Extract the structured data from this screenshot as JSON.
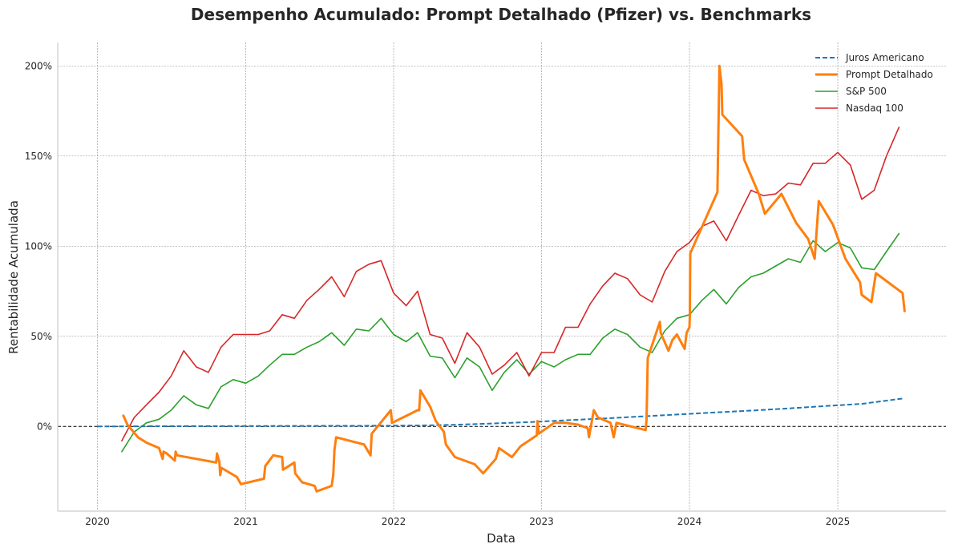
{
  "chart_data": {
    "type": "line",
    "title": "Desempenho Acumulado: Prompt Detalhado (Pfizer) vs. Benchmarks",
    "xlabel": "Data",
    "ylabel": "Rentabilidade Acumulada",
    "x_ticks": [
      "2020",
      "2021",
      "2022",
      "2023",
      "2024",
      "2025"
    ],
    "y_ticks": [
      "0%",
      "50%",
      "100%",
      "150%",
      "200%"
    ],
    "xlim": [
      "2019-09-25",
      "2025-09-25"
    ],
    "ylim": [
      -47,
      213
    ],
    "grid": true,
    "legend_position": "top-right",
    "reference_line": 0,
    "series": [
      {
        "name": "Juros Americano",
        "color": "#1f77b4",
        "style": "dashed",
        "points": [
          [
            "2020-01-01",
            0
          ],
          [
            "2020-06-01",
            0.1
          ],
          [
            "2020-12-01",
            0.2
          ],
          [
            "2021-06-01",
            0.3
          ],
          [
            "2021-12-01",
            0.4
          ],
          [
            "2022-03-01",
            0.5
          ],
          [
            "2022-06-01",
            0.9
          ],
          [
            "2022-09-01",
            1.6
          ],
          [
            "2022-12-01",
            2.4
          ],
          [
            "2023-03-01",
            3.4
          ],
          [
            "2023-06-01",
            4.4
          ],
          [
            "2023-09-01",
            5.5
          ],
          [
            "2023-12-01",
            6.6
          ],
          [
            "2024-03-01",
            7.7
          ],
          [
            "2024-06-01",
            8.8
          ],
          [
            "2024-09-01",
            10
          ],
          [
            "2024-12-01",
            11.3
          ],
          [
            "2025-03-01",
            12.5
          ],
          [
            "2025-06-15",
            15.6
          ]
        ]
      },
      {
        "name": "Prompt Detalhado",
        "color": "#ff7f0e",
        "style": "solid",
        "points": [
          [
            "2020-03-05",
            6
          ],
          [
            "2020-03-15",
            1
          ],
          [
            "2020-04-10",
            -6
          ],
          [
            "2020-05-01",
            -9
          ],
          [
            "2020-06-01",
            -12
          ],
          [
            "2020-06-10",
            -18
          ],
          [
            "2020-06-12",
            -14
          ],
          [
            "2020-06-20",
            -15
          ],
          [
            "2020-07-10",
            -19
          ],
          [
            "2020-07-12",
            -14
          ],
          [
            "2020-07-15",
            -16
          ],
          [
            "2020-10-20",
            -20
          ],
          [
            "2020-10-22",
            -15
          ],
          [
            "2020-10-28",
            -20
          ],
          [
            "2020-10-30",
            -27
          ],
          [
            "2020-11-02",
            -23
          ],
          [
            "2020-12-10",
            -28
          ],
          [
            "2020-12-20",
            -32
          ],
          [
            "2021-02-15",
            -29
          ],
          [
            "2021-02-18",
            -22
          ],
          [
            "2021-03-10",
            -16
          ],
          [
            "2021-04-01",
            -17
          ],
          [
            "2021-04-03",
            -24
          ],
          [
            "2021-05-01",
            -20
          ],
          [
            "2021-05-03",
            -26
          ],
          [
            "2021-05-20",
            -31
          ],
          [
            "2021-06-20",
            -33
          ],
          [
            "2021-06-25",
            -36
          ],
          [
            "2021-08-01",
            -33
          ],
          [
            "2021-08-05",
            -27
          ],
          [
            "2021-08-08",
            -13
          ],
          [
            "2021-08-12",
            -6
          ],
          [
            "2021-10-20",
            -10
          ],
          [
            "2021-11-05",
            -16
          ],
          [
            "2021-11-08",
            -4
          ],
          [
            "2021-12-25",
            9
          ],
          [
            "2021-12-28",
            2
          ],
          [
            "2022-03-01",
            9
          ],
          [
            "2022-03-05",
            9
          ],
          [
            "2022-03-08",
            20
          ],
          [
            "2022-04-01",
            11
          ],
          [
            "2022-04-15",
            3
          ],
          [
            "2022-05-05",
            -3
          ],
          [
            "2022-05-10",
            -10
          ],
          [
            "2022-06-01",
            -17
          ],
          [
            "2022-07-20",
            -21
          ],
          [
            "2022-08-10",
            -26
          ],
          [
            "2022-09-10",
            -18
          ],
          [
            "2022-09-18",
            -12
          ],
          [
            "2022-10-20",
            -17
          ],
          [
            "2022-11-10",
            -11
          ],
          [
            "2022-12-20",
            -5
          ],
          [
            "2022-12-22",
            3
          ],
          [
            "2022-12-25",
            -4
          ],
          [
            "2023-02-01",
            2
          ],
          [
            "2023-03-01",
            2
          ],
          [
            "2023-04-01",
            1
          ],
          [
            "2023-04-25",
            -1
          ],
          [
            "2023-04-28",
            -6
          ],
          [
            "2023-05-10",
            9
          ],
          [
            "2023-05-20",
            5
          ],
          [
            "2023-06-20",
            2
          ],
          [
            "2023-06-28",
            -6
          ],
          [
            "2023-07-05",
            2
          ],
          [
            "2023-08-10",
            0
          ],
          [
            "2023-09-15",
            -2
          ],
          [
            "2023-09-17",
            4
          ],
          [
            "2023-09-20",
            38
          ],
          [
            "2023-10-20",
            58
          ],
          [
            "2023-10-22",
            52
          ],
          [
            "2023-11-10",
            42
          ],
          [
            "2023-11-20",
            48
          ],
          [
            "2023-12-01",
            51
          ],
          [
            "2023-12-20",
            43
          ],
          [
            "2023-12-25",
            52
          ],
          [
            "2024-01-01",
            55
          ],
          [
            "2024-01-02",
            62
          ],
          [
            "2024-01-03",
            96
          ],
          [
            "2024-03-10",
            130
          ],
          [
            "2024-03-15",
            200
          ],
          [
            "2024-03-20",
            190
          ],
          [
            "2024-03-22",
            173
          ],
          [
            "2024-05-10",
            161
          ],
          [
            "2024-05-15",
            148
          ],
          [
            "2024-06-20",
            129
          ],
          [
            "2024-07-05",
            118
          ],
          [
            "2024-08-15",
            129
          ],
          [
            "2024-09-20",
            113
          ],
          [
            "2024-10-20",
            104
          ],
          [
            "2024-11-05",
            93
          ],
          [
            "2024-11-15",
            125
          ],
          [
            "2024-12-20",
            112
          ],
          [
            "2025-01-20",
            93
          ],
          [
            "2025-02-25",
            80
          ],
          [
            "2025-03-01",
            73
          ],
          [
            "2025-03-25",
            69
          ],
          [
            "2025-04-05",
            85
          ],
          [
            "2025-06-10",
            74
          ],
          [
            "2025-06-15",
            64
          ]
        ]
      },
      {
        "name": "S&P 500",
        "color": "#2ca02c",
        "style": "solid",
        "points": [
          [
            "2020-03-01",
            -14
          ],
          [
            "2020-04-01",
            -3
          ],
          [
            "2020-05-01",
            2
          ],
          [
            "2020-06-01",
            4
          ],
          [
            "2020-07-01",
            9
          ],
          [
            "2020-08-01",
            17
          ],
          [
            "2020-09-01",
            12
          ],
          [
            "2020-10-01",
            10
          ],
          [
            "2020-11-01",
            22
          ],
          [
            "2020-12-01",
            26
          ],
          [
            "2021-01-01",
            24
          ],
          [
            "2021-02-01",
            28
          ],
          [
            "2021-03-01",
            34
          ],
          [
            "2021-04-01",
            40
          ],
          [
            "2021-05-01",
            40
          ],
          [
            "2021-06-01",
            44
          ],
          [
            "2021-07-01",
            47
          ],
          [
            "2021-08-01",
            52
          ],
          [
            "2021-09-01",
            45
          ],
          [
            "2021-10-01",
            54
          ],
          [
            "2021-11-01",
            53
          ],
          [
            "2021-12-01",
            60
          ],
          [
            "2022-01-01",
            51
          ],
          [
            "2022-02-01",
            47
          ],
          [
            "2022-03-01",
            52
          ],
          [
            "2022-04-01",
            39
          ],
          [
            "2022-05-01",
            38
          ],
          [
            "2022-06-01",
            27
          ],
          [
            "2022-07-01",
            38
          ],
          [
            "2022-08-01",
            33
          ],
          [
            "2022-09-01",
            20
          ],
          [
            "2022-10-01",
            30
          ],
          [
            "2022-11-01",
            37
          ],
          [
            "2022-12-01",
            29
          ],
          [
            "2023-01-01",
            36
          ],
          [
            "2023-02-01",
            33
          ],
          [
            "2023-03-01",
            37
          ],
          [
            "2023-04-01",
            40
          ],
          [
            "2023-05-01",
            40
          ],
          [
            "2023-06-01",
            49
          ],
          [
            "2023-07-01",
            54
          ],
          [
            "2023-08-01",
            51
          ],
          [
            "2023-09-01",
            44
          ],
          [
            "2023-10-01",
            41
          ],
          [
            "2023-11-01",
            53
          ],
          [
            "2023-12-01",
            60
          ],
          [
            "2024-01-01",
            62
          ],
          [
            "2024-02-01",
            70
          ],
          [
            "2024-03-01",
            76
          ],
          [
            "2024-04-01",
            68
          ],
          [
            "2024-05-01",
            77
          ],
          [
            "2024-06-01",
            83
          ],
          [
            "2024-07-01",
            85
          ],
          [
            "2024-08-01",
            89
          ],
          [
            "2024-09-01",
            93
          ],
          [
            "2024-10-01",
            91
          ],
          [
            "2024-11-01",
            103
          ],
          [
            "2024-12-01",
            97
          ],
          [
            "2025-01-01",
            102
          ],
          [
            "2025-02-01",
            99
          ],
          [
            "2025-03-01",
            88
          ],
          [
            "2025-04-01",
            87
          ],
          [
            "2025-05-01",
            97
          ],
          [
            "2025-06-01",
            107
          ]
        ]
      },
      {
        "name": "Nasdaq 100",
        "color": "#d62728",
        "style": "solid",
        "points": [
          [
            "2020-03-01",
            -8
          ],
          [
            "2020-04-01",
            5
          ],
          [
            "2020-05-01",
            12
          ],
          [
            "2020-06-01",
            19
          ],
          [
            "2020-07-01",
            28
          ],
          [
            "2020-08-01",
            42
          ],
          [
            "2020-09-01",
            33
          ],
          [
            "2020-10-01",
            30
          ],
          [
            "2020-11-01",
            44
          ],
          [
            "2020-12-01",
            51
          ],
          [
            "2021-01-01",
            51
          ],
          [
            "2021-02-01",
            51
          ],
          [
            "2021-03-01",
            53
          ],
          [
            "2021-04-01",
            62
          ],
          [
            "2021-05-01",
            60
          ],
          [
            "2021-06-01",
            70
          ],
          [
            "2021-07-01",
            76
          ],
          [
            "2021-08-01",
            83
          ],
          [
            "2021-09-01",
            72
          ],
          [
            "2021-10-01",
            86
          ],
          [
            "2021-11-01",
            90
          ],
          [
            "2021-12-01",
            92
          ],
          [
            "2022-01-01",
            74
          ],
          [
            "2022-02-01",
            67
          ],
          [
            "2022-03-01",
            75
          ],
          [
            "2022-04-01",
            51
          ],
          [
            "2022-05-01",
            49
          ],
          [
            "2022-06-01",
            35
          ],
          [
            "2022-07-01",
            52
          ],
          [
            "2022-08-01",
            44
          ],
          [
            "2022-09-01",
            29
          ],
          [
            "2022-10-01",
            34
          ],
          [
            "2022-11-01",
            41
          ],
          [
            "2022-12-01",
            28
          ],
          [
            "2023-01-01",
            41
          ],
          [
            "2023-02-01",
            41
          ],
          [
            "2023-03-01",
            55
          ],
          [
            "2023-04-01",
            55
          ],
          [
            "2023-05-01",
            68
          ],
          [
            "2023-06-01",
            78
          ],
          [
            "2023-07-01",
            85
          ],
          [
            "2023-08-01",
            82
          ],
          [
            "2023-09-01",
            73
          ],
          [
            "2023-10-01",
            69
          ],
          [
            "2023-11-01",
            86
          ],
          [
            "2023-12-01",
            97
          ],
          [
            "2024-01-01",
            102
          ],
          [
            "2024-02-01",
            111
          ],
          [
            "2024-03-01",
            114
          ],
          [
            "2024-04-01",
            103
          ],
          [
            "2024-05-01",
            117
          ],
          [
            "2024-06-01",
            131
          ],
          [
            "2024-07-01",
            128
          ],
          [
            "2024-08-01",
            129
          ],
          [
            "2024-09-01",
            135
          ],
          [
            "2024-10-01",
            134
          ],
          [
            "2024-11-01",
            146
          ],
          [
            "2024-12-01",
            146
          ],
          [
            "2025-01-01",
            152
          ],
          [
            "2025-02-01",
            145
          ],
          [
            "2025-03-01",
            126
          ],
          [
            "2025-04-01",
            131
          ],
          [
            "2025-05-01",
            150
          ],
          [
            "2025-06-01",
            166
          ]
        ]
      }
    ]
  }
}
